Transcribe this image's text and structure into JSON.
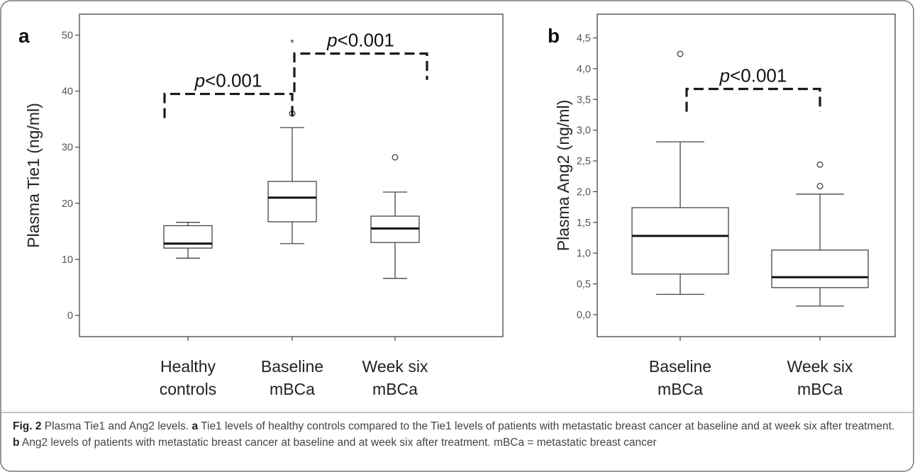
{
  "chart_data": [
    {
      "type": "box",
      "panel_label": "a",
      "ylabel": "Plasma Tie1 (ng/ml)",
      "ylim": [
        0,
        50
      ],
      "yticks": [
        0,
        10,
        20,
        30,
        40,
        50
      ],
      "ytick_labels": [
        "0",
        "10",
        "20",
        "30",
        "40",
        "50"
      ],
      "categories": [
        "Healthy\ncontrols",
        "Baseline\nmBCa",
        "Week six\nmBCa"
      ],
      "boxes": [
        {
          "whisker_low": 10.2,
          "q1": 12.0,
          "median": 12.8,
          "q3": 16.0,
          "whisker_high": 16.6,
          "outliers": [],
          "extremes": []
        },
        {
          "whisker_low": 12.8,
          "q1": 16.7,
          "median": 21.0,
          "q3": 23.9,
          "whisker_high": 33.5,
          "outliers": [
            36.0
          ],
          "extremes": [
            48.8
          ]
        },
        {
          "whisker_low": 6.6,
          "q1": 13.0,
          "median": 15.5,
          "q3": 17.7,
          "whisker_high": 22.0,
          "outliers": [
            28.2
          ],
          "extremes": []
        }
      ],
      "comparisons": [
        {
          "from": 0,
          "to": 1,
          "y": 39.5,
          "y_left_end": 35.2,
          "y_right_end": 35.0,
          "label_prefix": "p",
          "label_rest": "<0.001"
        },
        {
          "from": 1,
          "to": 2,
          "y": 46.7,
          "y_left_end": 39.8,
          "y_right_end": 42.0,
          "label_prefix": "p",
          "label_rest": "<0.001"
        }
      ]
    },
    {
      "type": "box",
      "panel_label": "b",
      "ylabel": "Plasma Ang2 (ng/ml)",
      "ylim": [
        0,
        4.5
      ],
      "yticks": [
        0,
        0.5,
        1.0,
        1.5,
        2.0,
        2.5,
        3.0,
        3.5,
        4.0,
        4.5
      ],
      "ytick_labels": [
        "0,0",
        "0,5",
        "1,0",
        "1,5",
        "2,0",
        "2,5",
        "3,0",
        "3,5",
        "4,0",
        "4,5"
      ],
      "categories": [
        "Baseline\nmBCa",
        "Week six\nmBCa"
      ],
      "boxes": [
        {
          "whisker_low": 0.33,
          "q1": 0.66,
          "median": 1.28,
          "q3": 1.74,
          "whisker_high": 2.81,
          "outliers": [
            4.24
          ],
          "extremes": []
        },
        {
          "whisker_low": 0.14,
          "q1": 0.44,
          "median": 0.61,
          "q3": 1.05,
          "whisker_high": 1.96,
          "outliers": [
            2.09,
            2.44
          ],
          "extremes": []
        }
      ],
      "comparisons": [
        {
          "from": 0,
          "to": 1,
          "y": 3.67,
          "y_left_end": 3.3,
          "y_right_end": 3.3,
          "label_prefix": "p",
          "label_rest": "<0.001"
        }
      ]
    }
  ],
  "caption": {
    "fig_label": "Fig. 2",
    "title": " Plasma Tie1 and Ang2 levels. ",
    "a_label": "a",
    "a_text": " Tie1 levels of healthy controls compared to the Tie1 levels of patients with metastatic breast cancer at baseline and at week six after treatment. ",
    "b_label": "b",
    "b_text": " Ang2 levels of patients with metastatic breast cancer at baseline and at week six after treatment. mBCa = metastatic breast cancer"
  }
}
